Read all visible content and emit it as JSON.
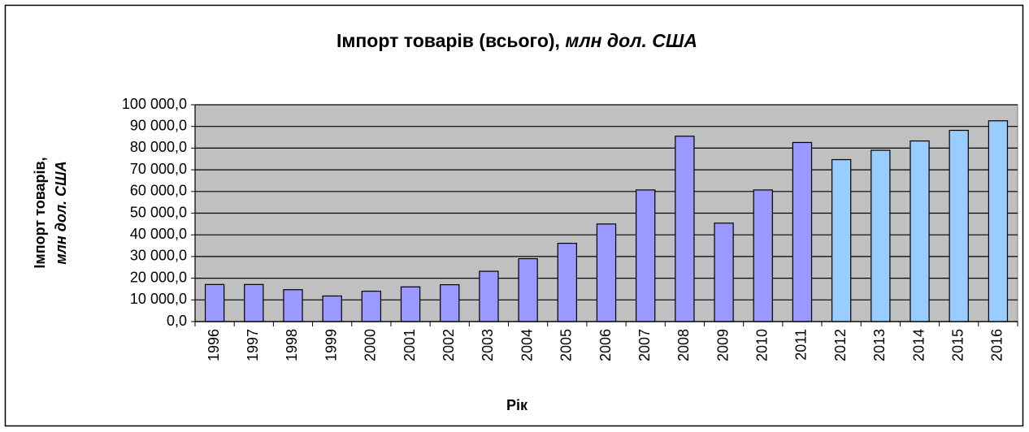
{
  "chart_data": {
    "type": "bar",
    "title": "Імпорт товарів (всього),",
    "title_unit": "млн дол. США",
    "ylabel": "Імпорт товарів,",
    "ylabel_unit": "млн дол. США",
    "xlabel": "Рік",
    "categories": [
      "1996",
      "1997",
      "1998",
      "1999",
      "2000",
      "2001",
      "2002",
      "2003",
      "2004",
      "2005",
      "2006",
      "2007",
      "2008",
      "2009",
      "2010",
      "2011",
      "2012",
      "2013",
      "2014",
      "2015",
      "2016"
    ],
    "values": [
      17100,
      17100,
      14700,
      11800,
      14000,
      16000,
      17000,
      23200,
      29000,
      36100,
      45000,
      60700,
      85500,
      45400,
      60700,
      82600,
      74700,
      79000,
      83300,
      88200,
      92600
    ],
    "colors": [
      "#9999ff",
      "#9999ff",
      "#9999ff",
      "#9999ff",
      "#9999ff",
      "#9999ff",
      "#9999ff",
      "#9999ff",
      "#9999ff",
      "#9999ff",
      "#9999ff",
      "#9999ff",
      "#9999ff",
      "#9999ff",
      "#9999ff",
      "#9999ff",
      "#99ccff",
      "#99ccff",
      "#99ccff",
      "#99ccff",
      "#99ccff"
    ],
    "ylim": [
      0,
      100000
    ],
    "yticks": [
      {
        "value": 0,
        "label": "0,0"
      },
      {
        "value": 10000,
        "label": "10 000,0"
      },
      {
        "value": 20000,
        "label": "20 000,0"
      },
      {
        "value": 30000,
        "label": "30 000,0"
      },
      {
        "value": 40000,
        "label": "40 000,0"
      },
      {
        "value": 50000,
        "label": "50 000,0"
      },
      {
        "value": 60000,
        "label": "60 000,0"
      },
      {
        "value": 70000,
        "label": "70 000,0"
      },
      {
        "value": 80000,
        "label": "80 000,0"
      },
      {
        "value": 90000,
        "label": "90 000,0"
      },
      {
        "value": 100000,
        "label": "100 000,0"
      }
    ],
    "grid": true,
    "plot_background": "#c0c0c0"
  }
}
